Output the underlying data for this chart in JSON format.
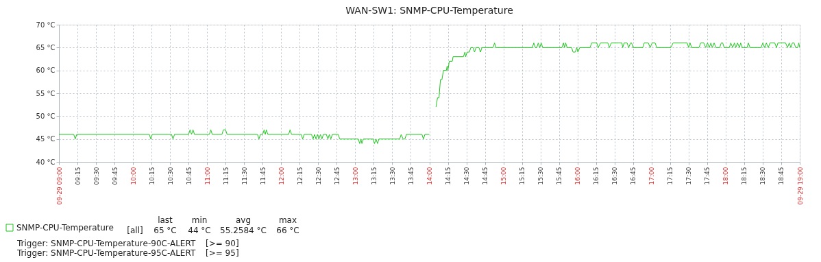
{
  "chart_data": {
    "type": "line",
    "title": "WAN-SW1: SNMP-CPU-Temperature",
    "x": [
      9.0,
      9.2,
      9.22,
      9.24,
      10.22,
      10.24,
      10.26,
      10.52,
      10.54,
      10.56,
      10.75,
      10.77,
      10.79,
      10.81,
      10.83,
      11.03,
      11.05,
      11.07,
      11.2,
      11.22,
      11.25,
      11.27,
      11.68,
      11.7,
      11.72,
      11.75,
      11.77,
      11.785,
      11.8,
      11.82,
      12.1,
      12.12,
      12.14,
      12.27,
      12.29,
      12.31,
      12.41,
      12.43,
      12.45,
      12.47,
      12.49,
      12.51,
      12.53,
      12.55,
      12.57,
      12.61,
      12.63,
      12.65,
      12.67,
      12.69,
      12.77,
      12.79,
      13.04,
      13.06,
      13.075,
      13.09,
      13.11,
      13.24,
      13.26,
      13.28,
      13.3,
      13.32,
      13.6,
      13.62,
      13.645,
      13.67,
      13.69,
      13.9,
      13.92,
      13.94,
      14.0,
      14.05,
      14.09,
      14.11,
      14.13,
      14.15,
      14.17,
      14.19,
      14.23,
      14.24,
      14.25,
      14.27,
      14.31,
      14.32,
      14.46,
      14.48,
      14.49,
      14.51,
      14.54,
      14.56,
      14.59,
      14.61,
      14.63,
      14.67,
      14.69,
      14.71,
      14.86,
      14.88,
      14.9,
      15.39,
      15.41,
      15.43,
      15.45,
      15.47,
      15.49,
      15.51,
      15.53,
      15.79,
      15.81,
      15.825,
      15.84,
      15.86,
      15.92,
      15.94,
      15.97,
      15.99,
      16.005,
      16.03,
      16.17,
      16.19,
      16.26,
      16.28,
      16.31,
      16.41,
      16.43,
      16.456,
      16.6,
      16.61,
      16.63,
      16.67,
      16.69,
      16.716,
      16.73,
      16.75,
      16.88,
      16.9,
      16.956,
      16.98,
      17.007,
      17.048,
      17.07,
      17.26,
      17.29,
      17.48,
      17.5,
      17.52,
      17.54,
      17.64,
      17.663,
      17.705,
      17.73,
      17.755,
      17.779,
      17.8,
      17.82,
      17.844,
      17.87,
      17.92,
      17.94,
      17.96,
      17.98,
      18.05,
      18.069,
      18.095,
      18.118,
      18.137,
      18.16,
      18.186,
      18.202,
      18.225,
      18.29,
      18.306,
      18.329,
      18.478,
      18.501,
      18.527,
      18.549,
      18.575,
      18.598,
      18.663,
      18.686,
      18.705,
      18.809,
      18.835,
      18.858,
      18.881,
      18.9,
      18.923,
      18.945,
      18.971,
      18.987,
      19.0
    ],
    "series": [
      {
        "name": "SNMP-CPU-Temperature",
        "color": "#1ec61e",
        "values": [
          46,
          46,
          45,
          46,
          46,
          45,
          46,
          46,
          45,
          46,
          46,
          47,
          46,
          47,
          46,
          46,
          47,
          46,
          46,
          47,
          47,
          46,
          46,
          45,
          46,
          46,
          47,
          46,
          47,
          46,
          46,
          47,
          46,
          46,
          45,
          46,
          46,
          45,
          46,
          45,
          46,
          45,
          46,
          45,
          46,
          46,
          45,
          46,
          45,
          46,
          46,
          45,
          45,
          44,
          45,
          44,
          45,
          45,
          44,
          45,
          44,
          45,
          45,
          46,
          45,
          45,
          46,
          46,
          45,
          46,
          46,
          null,
          52,
          54,
          54,
          58,
          58,
          60,
          60,
          61,
          60,
          62,
          62,
          63,
          63,
          64,
          63,
          64,
          64,
          65,
          65,
          64,
          65,
          65,
          64,
          65,
          65,
          66,
          65,
          65,
          66,
          65,
          65,
          66,
          65,
          66,
          65,
          65,
          66,
          65,
          66,
          65,
          65,
          64,
          64,
          65,
          64,
          65,
          65,
          66,
          66,
          65,
          66,
          66,
          65,
          66,
          66,
          65,
          66,
          66,
          65,
          66,
          66,
          65,
          65,
          66,
          66,
          65,
          66,
          66,
          65,
          65,
          66,
          66,
          65,
          66,
          65,
          65,
          66,
          66,
          65,
          66,
          65,
          66,
          65,
          66,
          65,
          65,
          66,
          66,
          65,
          65,
          66,
          65,
          66,
          65,
          66,
          65,
          66,
          65,
          65,
          66,
          65,
          65,
          66,
          65,
          66,
          65,
          66,
          66,
          65,
          66,
          66,
          65,
          66,
          65,
          66,
          66,
          65,
          65,
          66,
          65
        ]
      }
    ],
    "xlim": [
      9,
      19
    ],
    "xticks": [
      {
        "value": 9,
        "label": "09-29 09:00"
      },
      {
        "value": 9.25,
        "label": "09:15"
      },
      {
        "value": 9.5,
        "label": "09:30"
      },
      {
        "value": 9.75,
        "label": "09:45"
      },
      {
        "value": 10,
        "label": "10:00"
      },
      {
        "value": 10.25,
        "label": "10:15"
      },
      {
        "value": 10.5,
        "label": "10:30"
      },
      {
        "value": 10.75,
        "label": "10:45"
      },
      {
        "value": 11,
        "label": "11:00"
      },
      {
        "value": 11.25,
        "label": "11:15"
      },
      {
        "value": 11.5,
        "label": "11:30"
      },
      {
        "value": 11.75,
        "label": "11:45"
      },
      {
        "value": 12,
        "label": "12:00"
      },
      {
        "value": 12.25,
        "label": "12:15"
      },
      {
        "value": 12.5,
        "label": "12:30"
      },
      {
        "value": 12.75,
        "label": "12:45"
      },
      {
        "value": 13,
        "label": "13:00"
      },
      {
        "value": 13.25,
        "label": "13:15"
      },
      {
        "value": 13.5,
        "label": "13:30"
      },
      {
        "value": 13.75,
        "label": "13:45"
      },
      {
        "value": 14,
        "label": "14:00"
      },
      {
        "value": 14.25,
        "label": "14:15"
      },
      {
        "value": 14.5,
        "label": "14:30"
      },
      {
        "value": 14.75,
        "label": "14:45"
      },
      {
        "value": 15,
        "label": "15:00"
      },
      {
        "value": 15.25,
        "label": "15:15"
      },
      {
        "value": 15.5,
        "label": "15:30"
      },
      {
        "value": 15.75,
        "label": "15:45"
      },
      {
        "value": 16,
        "label": "16:00"
      },
      {
        "value": 16.25,
        "label": "16:15"
      },
      {
        "value": 16.5,
        "label": "16:30"
      },
      {
        "value": 16.75,
        "label": "16:45"
      },
      {
        "value": 17,
        "label": "17:00"
      },
      {
        "value": 17.25,
        "label": "17:15"
      },
      {
        "value": 17.5,
        "label": "17:30"
      },
      {
        "value": 17.75,
        "label": "17:45"
      },
      {
        "value": 18,
        "label": "18:00"
      },
      {
        "value": 18.25,
        "label": "18:15"
      },
      {
        "value": 18.5,
        "label": "18:30"
      },
      {
        "value": 18.75,
        "label": "18:45"
      },
      {
        "value": 19,
        "label": "09-29 19:00"
      }
    ],
    "ylim": [
      40,
      70
    ],
    "yticks": [
      {
        "value": 40,
        "label": "40 °C"
      },
      {
        "value": 45,
        "label": "45 °C"
      },
      {
        "value": 50,
        "label": "50 °C"
      },
      {
        "value": 55,
        "label": "55 °C"
      },
      {
        "value": 60,
        "label": "60 °C"
      },
      {
        "value": 65,
        "label": "65 °C"
      },
      {
        "value": 70,
        "label": "70 °C"
      }
    ],
    "grid": true,
    "legend": "bottom left",
    "line_style": "solid",
    "marker": "none",
    "annotations": [
      "last",
      "min",
      "avg",
      "max",
      "[all]",
      "65 °C",
      "44 °C",
      "55.2584 °C",
      "66 °C",
      "Trigger: SNMP-CPU-Temperature-90C-ALERT",
      "[>= 90]",
      "Trigger: SNMP-CPU-Temperature-95C-ALERT",
      "[>= 95]"
    ]
  }
}
